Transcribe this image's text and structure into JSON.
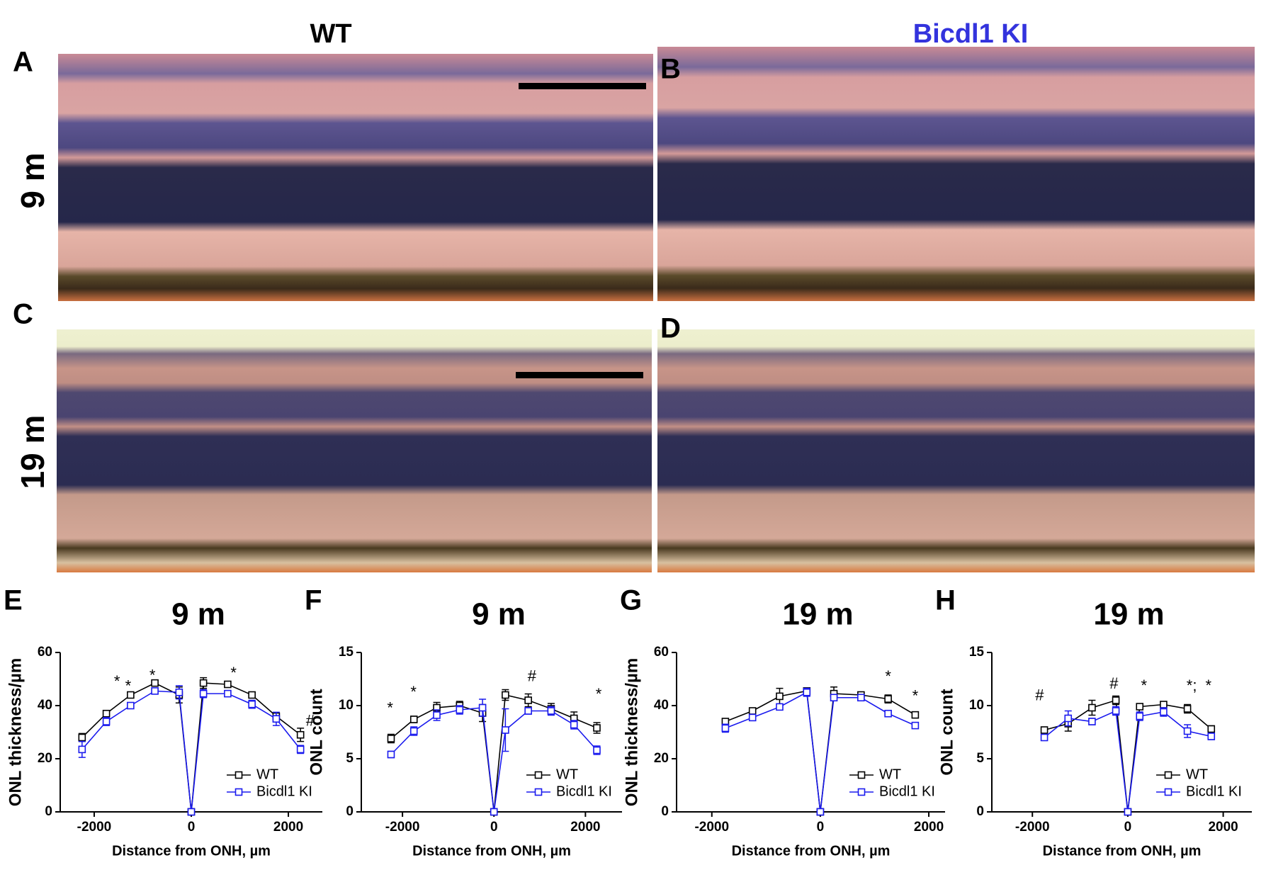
{
  "header": {
    "columns": [
      "WT",
      "Bicdl1 KI"
    ],
    "rows": [
      "9 m",
      "19 m"
    ],
    "panels": [
      "A",
      "B",
      "C",
      "D"
    ]
  },
  "chart_data": [
    {
      "type": "line",
      "panel": "E",
      "title": "9 m",
      "x_label": "Distance from ONH, µm",
      "y_label": "ONL thickness/µm",
      "x": [
        -2250,
        -1750,
        -1250,
        -750,
        -250,
        0,
        250,
        750,
        1250,
        1750,
        2250
      ],
      "xlim": [
        -2700,
        2700
      ],
      "xticks": [
        -2000,
        0,
        2000
      ],
      "ylim": [
        0,
        60
      ],
      "yticks": [
        0,
        20,
        40,
        60
      ],
      "legend": "lower right",
      "series": [
        {
          "name": "WT",
          "color": "#000000",
          "values": [
            28,
            37,
            44,
            48.5,
            44,
            0,
            48.5,
            48,
            44,
            36,
            29
          ],
          "errors": [
            1.5,
            1,
            1,
            1,
            3,
            0,
            2,
            1,
            1,
            1,
            2.5
          ]
        },
        {
          "name": "Bicdl1 KI",
          "color": "#1a1aee",
          "values": [
            23.5,
            34,
            40,
            45.5,
            45,
            0,
            44.5,
            44.5,
            40.5,
            35,
            23.5
          ],
          "errors": [
            3,
            1.5,
            1,
            1,
            2.5,
            0,
            1.5,
            1,
            1.5,
            2.5,
            1.5
          ]
        }
      ],
      "annotations": [
        {
          "text": "*",
          "x": -1530,
          "y": 48.7
        },
        {
          "text": "*",
          "x": -1300,
          "y": 47
        },
        {
          "text": "*",
          "x": -800,
          "y": 51
        },
        {
          "text": "*",
          "x": 870,
          "y": 52
        },
        {
          "text": "#",
          "x": 2450,
          "y": 34
        }
      ]
    },
    {
      "type": "line",
      "panel": "F",
      "title": "9 m",
      "x_label": "Distance from ONH, µm",
      "y_label": "ONL count",
      "x": [
        -2250,
        -1750,
        -1250,
        -750,
        -250,
        0,
        250,
        750,
        1250,
        1750,
        2250
      ],
      "xlim": [
        -2900,
        2800
      ],
      "xticks": [
        -2000,
        0,
        2000
      ],
      "ylim": [
        0,
        15
      ],
      "yticks": [
        0,
        5,
        10,
        15
      ],
      "legend": "lower right",
      "series": [
        {
          "name": "WT",
          "color": "#000000",
          "values": [
            6.9,
            8.7,
            9.8,
            10,
            9.3,
            0,
            11,
            10.5,
            9.7,
            8.8,
            7.9
          ],
          "errors": [
            0.4,
            0.3,
            0.5,
            0.4,
            0.8,
            0,
            0.5,
            0.6,
            0.5,
            0.6,
            0.5
          ]
        },
        {
          "name": "Bicdl1 KI",
          "color": "#1a1aee",
          "values": [
            5.4,
            7.6,
            9.1,
            9.6,
            9.8,
            0,
            7.7,
            9.5,
            9.5,
            8.2,
            5.8
          ],
          "errors": [
            0.3,
            0.4,
            0.5,
            0.4,
            0.8,
            0,
            2,
            0.3,
            0.4,
            0.4,
            0.4
          ]
        }
      ],
      "annotations": [
        {
          "text": "*",
          "x": -2270,
          "y": 9.7
        },
        {
          "text": "*",
          "x": -1760,
          "y": 11.2
        },
        {
          "text": "#",
          "x": 830,
          "y": 12.7
        },
        {
          "text": "*",
          "x": 2290,
          "y": 11
        }
      ]
    },
    {
      "type": "line",
      "panel": "G",
      "title": "19 m",
      "x_label": "Distance from ONH, µm",
      "y_label": "ONL thickness/µm",
      "x": [
        -1750,
        -1250,
        -750,
        -250,
        0,
        250,
        750,
        1250,
        1750
      ],
      "xlim": [
        -2650,
        2300
      ],
      "xticks": [
        -2000,
        0,
        2000
      ],
      "ylim": [
        0,
        60
      ],
      "yticks": [
        0,
        20,
        40,
        60
      ],
      "legend": "lower right",
      "series": [
        {
          "name": "WT",
          "color": "#000000",
          "values": [
            34,
            38,
            43.5,
            45.5,
            0,
            44.5,
            44,
            42.5,
            36.5
          ],
          "errors": [
            1,
            1,
            3,
            1,
            0,
            2.5,
            1,
            1.5,
            1
          ]
        },
        {
          "name": "Bicdl1 KI",
          "color": "#1a1aee",
          "values": [
            31.5,
            35.5,
            39.5,
            45,
            0,
            43,
            43,
            37,
            32.5
          ],
          "errors": [
            1.5,
            1,
            1,
            1.5,
            0,
            1,
            1,
            1,
            1
          ]
        }
      ],
      "annotations": [
        {
          "text": "*",
          "x": 1250,
          "y": 50.6
        },
        {
          "text": "*",
          "x": 1750,
          "y": 43.3
        }
      ]
    },
    {
      "type": "line",
      "panel": "H",
      "title": "19 m",
      "x_label": "Distance from ONH, µm",
      "y_label": "ONL count",
      "x": [
        -1750,
        -1250,
        -750,
        -250,
        0,
        250,
        750,
        1250,
        1750
      ],
      "xlim": [
        -2850,
        2600
      ],
      "xticks": [
        -2000,
        0,
        2000
      ],
      "ylim": [
        0,
        15
      ],
      "yticks": [
        0,
        5,
        10,
        15
      ],
      "legend": "lower right",
      "series": [
        {
          "name": "WT",
          "color": "#000000",
          "values": [
            7.7,
            8.3,
            9.8,
            10.5,
            0,
            9.9,
            10.1,
            9.7,
            7.8
          ],
          "errors": [
            0.2,
            0.7,
            0.7,
            0.4,
            0,
            0.2,
            0.2,
            0.4,
            0.3
          ]
        },
        {
          "name": "Bicdl1 KI",
          "color": "#1a1aee",
          "values": [
            7.0,
            8.8,
            8.5,
            9.5,
            0,
            9.0,
            9.4,
            7.6,
            7.1
          ],
          "errors": [
            0.2,
            0.7,
            0.3,
            0.4,
            0,
            0.4,
            0.4,
            0.6,
            0.3
          ]
        }
      ],
      "annotations": [
        {
          "text": "#",
          "x": -1850,
          "y": 10.9
        },
        {
          "text": "#",
          "x": -290,
          "y": 12
        },
        {
          "text": "*",
          "x": 340,
          "y": 11.8
        },
        {
          "text": "*;",
          "x": 1340,
          "y": 11.8
        },
        {
          "text": "*",
          "x": 1690,
          "y": 11.8
        }
      ]
    }
  ]
}
